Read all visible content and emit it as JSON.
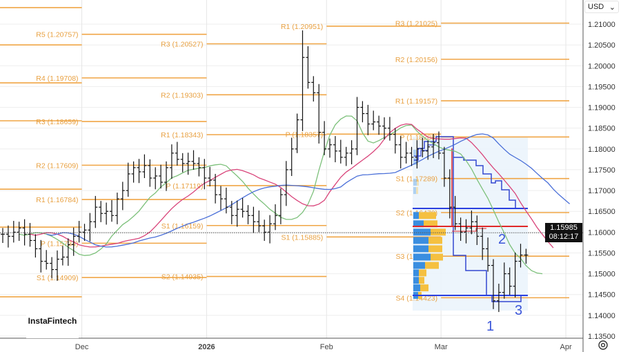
{
  "header": {
    "currency": "USD",
    "dropdown_icon": "chevron-down-icon"
  },
  "current_price": {
    "value": "1.15985",
    "countdown": "08:12:17"
  },
  "watermark": "InstaFintech",
  "annotations": [
    "1",
    "2",
    "3"
  ],
  "colors": {
    "level": "#f0a545",
    "ma_fast": "#7cc07a",
    "ma_mid": "#d9447a",
    "ma_slow": "#4a6fd8",
    "profile_blue": "#3a8ee0",
    "profile_orange": "#f5c040",
    "step": "#3346d0",
    "red": "#e02828"
  },
  "chart_data": {
    "type": "ohlc",
    "symbol_currency": "USD",
    "y_ticks": [
      "1.21000",
      "1.20500",
      "1.20000",
      "1.19500",
      "1.19000",
      "1.18500",
      "1.18000",
      "1.17500",
      "1.17000",
      "1.16500",
      "1.16000",
      "1.15500",
      "1.15000",
      "1.14500",
      "1.14000",
      "1.13500"
    ],
    "ylim": [
      1.135,
      1.21
    ],
    "x_ticks": [
      {
        "label": "Dec",
        "bar": 14.5,
        "bold": false
      },
      {
        "label": "2026",
        "bar": 37.4,
        "bold": true
      },
      {
        "label": "Feb",
        "bar": 59.4,
        "bold": false
      },
      {
        "label": "Mar",
        "bar": 80.4,
        "bold": false
      },
      {
        "label": "Apr",
        "bar": 103.3,
        "bold": false
      }
    ],
    "close": [
      1.1595,
      1.159,
      1.16,
      1.161,
      1.1595,
      1.158,
      1.156,
      1.153,
      1.1525,
      1.151,
      1.1535,
      1.154,
      1.157,
      1.159,
      1.16,
      1.1605,
      1.1625,
      1.166,
      1.1645,
      1.165,
      1.164,
      1.168,
      1.17,
      1.174,
      1.1755,
      1.1745,
      1.176,
      1.173,
      1.1735,
      1.172,
      1.1755,
      1.179,
      1.1775,
      1.1765,
      1.177,
      1.1765,
      1.1755,
      1.173,
      1.1725,
      1.169,
      1.168,
      1.166,
      1.164,
      1.1655,
      1.165,
      1.164,
      1.1625,
      1.1615,
      1.16,
      1.162,
      1.164,
      1.169,
      1.175,
      1.18,
      1.187,
      1.202,
      1.196,
      1.1935,
      1.184,
      1.18,
      1.181,
      1.1795,
      1.178,
      1.179,
      1.18,
      1.19,
      1.1885,
      1.186,
      1.1865,
      1.1855,
      1.185,
      1.1835,
      1.181,
      1.178,
      1.179,
      1.178,
      1.18,
      1.1795,
      1.1805,
      1.1815,
      1.179,
      1.173,
      1.166,
      1.162,
      1.16,
      1.161,
      1.1625,
      1.159,
      1.156,
      1.152,
      1.1435,
      1.1455,
      1.15,
      1.147,
      1.153,
      1.1545,
      1.1545
    ],
    "extremes": {
      "55": {
        "high": 1.2085
      },
      "65": {
        "high": 1.1925
      },
      "90": {
        "low": 1.1415
      },
      "54": {
        "low": 1.179
      }
    },
    "moving_averages": [
      {
        "name": "fast",
        "period": 8,
        "shift": 3
      },
      {
        "name": "mid",
        "period": 16,
        "shift": 5
      },
      {
        "name": "slow",
        "period": 28,
        "shift": 8
      }
    ],
    "pivot_periods": [
      {
        "month": "Nov",
        "start_bar": -1,
        "end_bar": 14.5,
        "levels": [
          {
            "label": "",
            "value": 1.21398
          },
          {
            "label": "",
            "value": 1.20502
          },
          {
            "label": "",
            "value": 1.19589
          },
          {
            "label": "",
            "value": 1.18677
          },
          {
            "label": "",
            "value": 1.17034
          },
          {
            "label": "",
            "value": 1.16121
          },
          {
            "label": "",
            "value": 1.14445
          }
        ]
      },
      {
        "month": "Dec",
        "start_bar": 14.5,
        "end_bar": 37.4,
        "levels": [
          {
            "label": "R5 (1.20757)",
            "value": 1.20757
          },
          {
            "label": "R4 (1.19708)",
            "value": 1.19708
          },
          {
            "label": "R3 (1.18659)",
            "value": 1.18659
          },
          {
            "label": "R2 (1.17609)",
            "value": 1.17609
          },
          {
            "label": "R1 (1.16784)",
            "value": 1.16784
          },
          {
            "label": "P (1.15734)",
            "value": 1.15734
          },
          {
            "label": "S1 (1.14909)",
            "value": 1.14909
          }
        ]
      },
      {
        "month": "Jan",
        "start_bar": 37.4,
        "end_bar": 59.4,
        "levels": [
          {
            "label": "R3 (1.20527)",
            "value": 1.20527
          },
          {
            "label": "R2 (1.19303)",
            "value": 1.19303
          },
          {
            "label": "R1 (1.18343)",
            "value": 1.18343
          },
          {
            "label": "P (1.17119)",
            "value": 1.17119
          },
          {
            "label": "S1 (1.16159)",
            "value": 1.16159
          },
          {
            "label": "S2 (1.14935)",
            "value": 1.14935
          }
        ]
      },
      {
        "month": "Feb",
        "start_bar": 59.4,
        "end_bar": 80.4,
        "levels": [
          {
            "label": "R1 (1.20951)",
            "value": 1.20951
          },
          {
            "label": "P (1.18357)",
            "value": 1.18357
          },
          {
            "label": "S1 (1.15885)",
            "value": 1.15885
          }
        ]
      },
      {
        "month": "Mar",
        "start_bar": 80.4,
        "end_bar": 104.3,
        "levels": [
          {
            "label": "R3 (1.21025)",
            "value": 1.21025
          },
          {
            "label": "R2 (1.20156)",
            "value": 1.20156
          },
          {
            "label": "R1 (1.19157)",
            "value": 1.19157
          },
          {
            "label": "P (1.18288)",
            "value": 1.18288
          },
          {
            "label": "S1 (1.17289)",
            "value": 1.17289
          },
          {
            "label": "S2 (1.16470)",
            "value": 1.1647
          },
          {
            "label": "S3 (1.15421)",
            "value": 1.15421
          },
          {
            "label": "S4 (1.14423)",
            "value": 1.14423
          }
        ]
      }
    ],
    "volume_profile": {
      "rows": [
        {
          "price": 1.164,
          "buy": 8,
          "sell": 25
        },
        {
          "price": 1.162,
          "buy": 15,
          "sell": 20
        },
        {
          "price": 1.16,
          "buy": 25,
          "sell": 22
        },
        {
          "price": 1.158,
          "buy": 22,
          "sell": 20
        },
        {
          "price": 1.156,
          "buy": 22,
          "sell": 20
        },
        {
          "price": 1.154,
          "buy": 25,
          "sell": 18
        },
        {
          "price": 1.152,
          "buy": 17,
          "sell": 20
        },
        {
          "price": 1.1502,
          "buy": 8,
          "sell": 11
        },
        {
          "price": 1.1484,
          "buy": 8,
          "sell": 8
        },
        {
          "price": 1.1466,
          "buy": 10,
          "sell": 12
        },
        {
          "price": 1.1448,
          "buy": 7,
          "sell": 5
        },
        {
          "price": 1.179,
          "buy": 4,
          "sell": 3
        },
        {
          "price": 1.177,
          "buy": 5,
          "sell": 2
        },
        {
          "price": 1.172,
          "buy": 5,
          "sell": 3
        },
        {
          "price": 1.17,
          "buy": 4,
          "sell": 3
        }
      ],
      "range_high": 1.165,
      "range_low": 1.1441,
      "poc": 1.161
    },
    "current_price": 1.15985
  }
}
